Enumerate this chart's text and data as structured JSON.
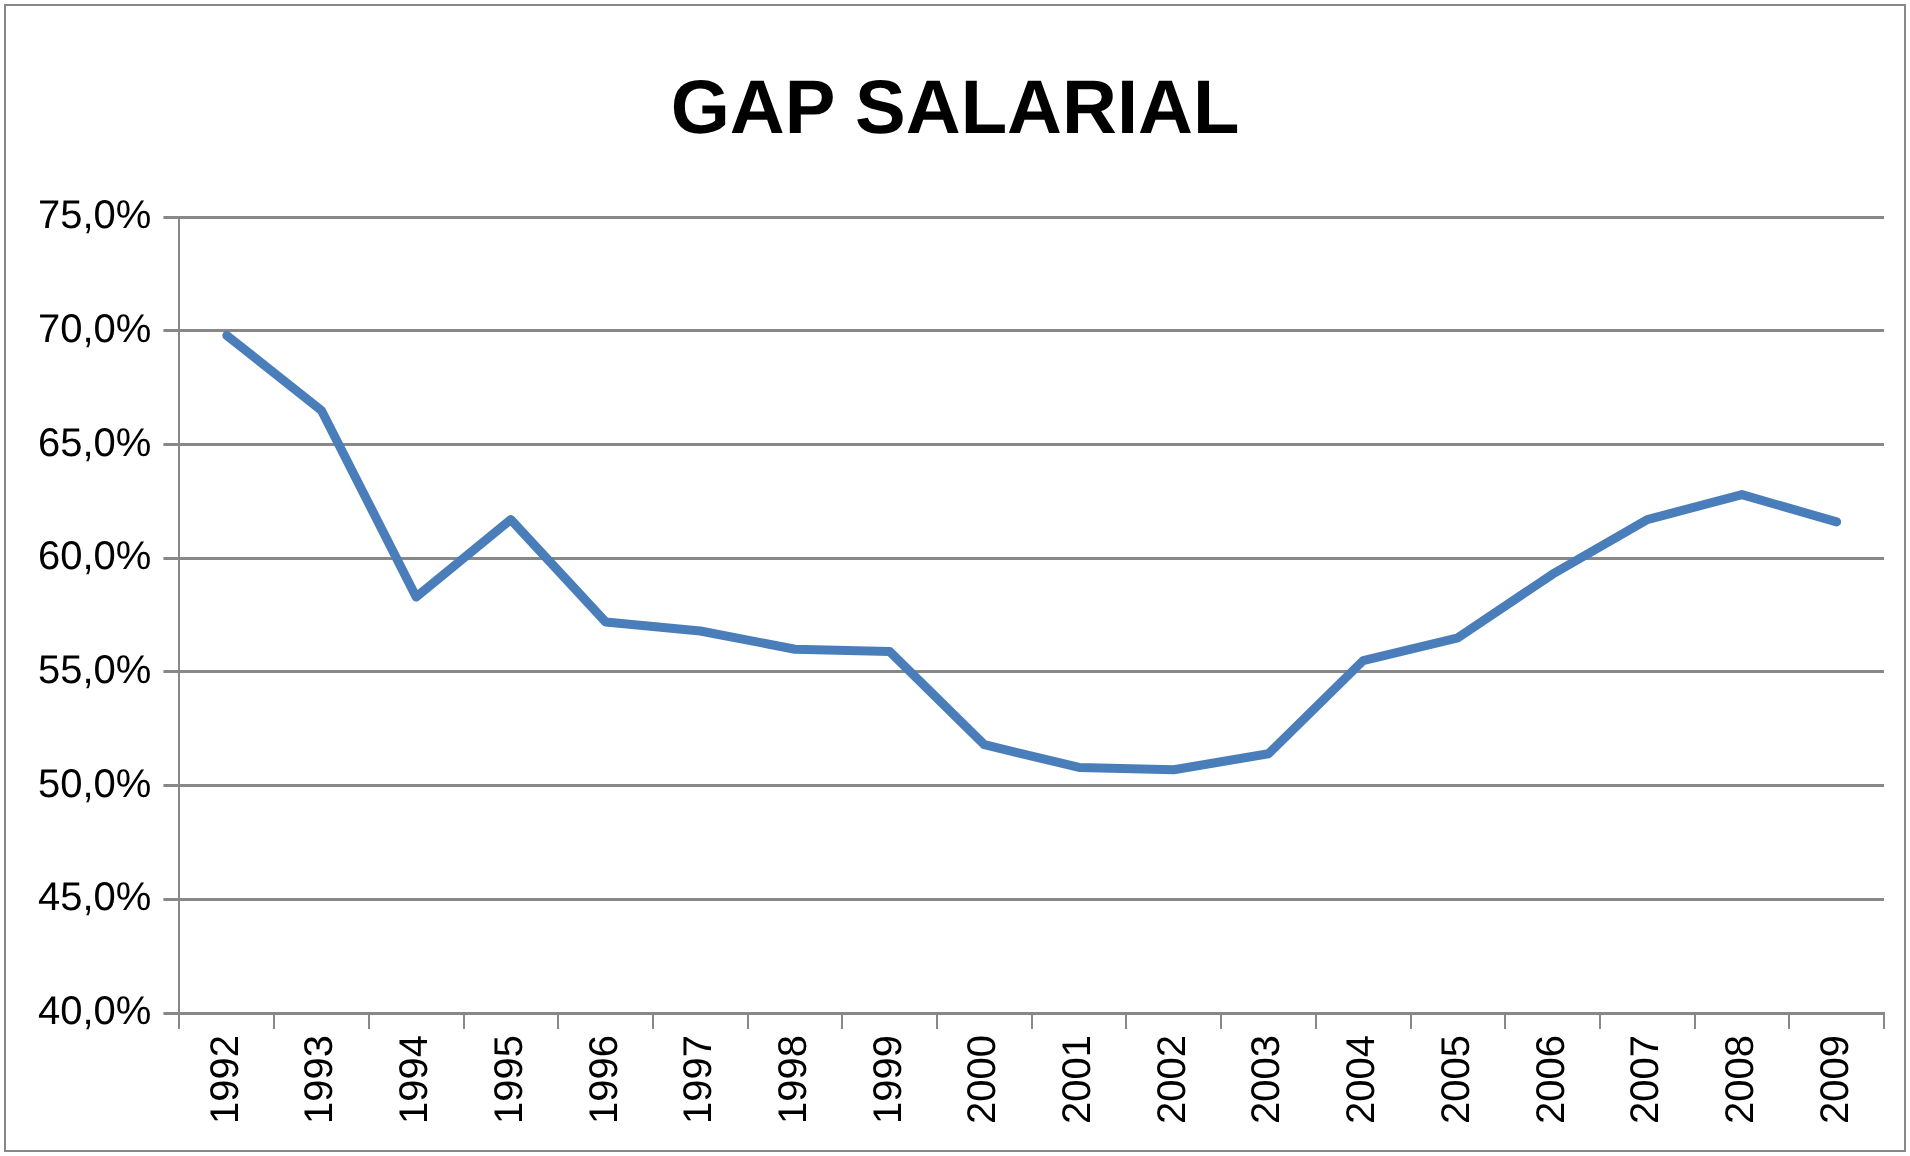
{
  "chart_data": {
    "type": "line",
    "title": "GAP SALARIAL",
    "categories": [
      "1992",
      "1993",
      "1994",
      "1995",
      "1996",
      "1997",
      "1998",
      "1999",
      "2000",
      "2001",
      "2002",
      "2003",
      "2004",
      "2005",
      "2006",
      "2007",
      "2008",
      "2009"
    ],
    "series": [
      {
        "color": "#4a7ebb",
        "values": [
          69.8,
          66.5,
          58.3,
          61.7,
          57.2,
          56.8,
          56.0,
          55.9,
          51.8,
          50.8,
          50.7,
          51.4,
          55.5,
          56.5,
          59.3,
          61.7,
          62.8,
          61.6
        ]
      }
    ],
    "ylim": [
      40,
      75
    ],
    "yticks": [
      {
        "value": 40,
        "label": "40,0%"
      },
      {
        "value": 45,
        "label": "45,0%"
      },
      {
        "value": 50,
        "label": "50,0%"
      },
      {
        "value": 55,
        "label": "55,0%"
      },
      {
        "value": 60,
        "label": "60,0%"
      },
      {
        "value": 65,
        "label": "65,0%"
      },
      {
        "value": 70,
        "label": "70,0%"
      },
      {
        "value": 75,
        "label": "75,0%"
      }
    ],
    "grid": "y",
    "legend": false,
    "marker": "none",
    "line_style": "solid"
  }
}
